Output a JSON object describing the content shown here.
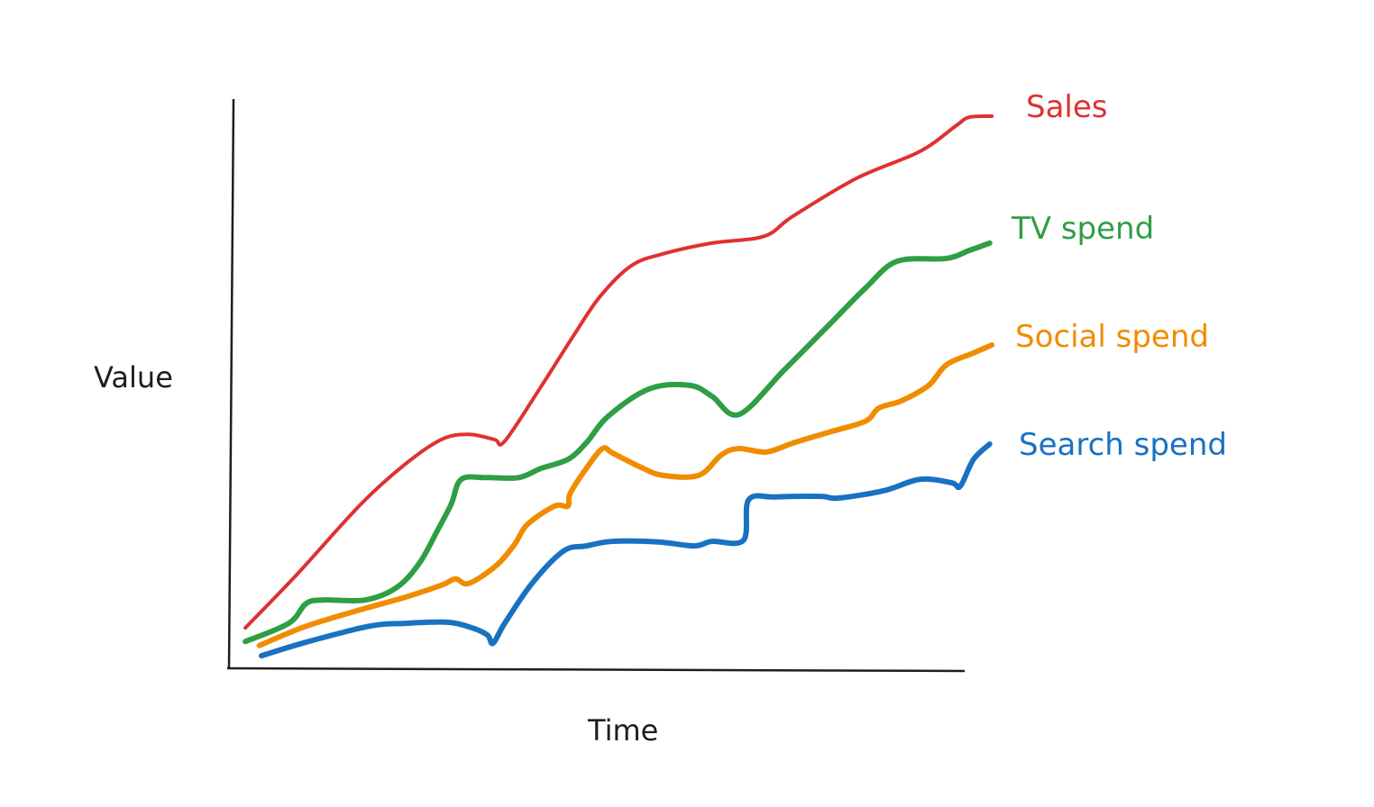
{
  "chart_data": {
    "type": "line",
    "title": "",
    "xlabel": "Time",
    "ylabel": "Value",
    "xlim": [
      0,
      100
    ],
    "ylim": [
      0,
      100
    ],
    "grid": false,
    "legend": "right (labels at line ends)",
    "series": [
      {
        "name": "Sales",
        "color": "#e03131",
        "points": [
          [
            2.1,
            7.1
          ],
          [
            9.2,
            16.6
          ],
          [
            17.8,
            28.8
          ],
          [
            23.9,
            35.9
          ],
          [
            28.8,
            40.2
          ],
          [
            32.5,
            41.1
          ],
          [
            36.0,
            40.2
          ],
          [
            37.4,
            39.9
          ],
          [
            42.3,
            49.4
          ],
          [
            46.6,
            58.1
          ],
          [
            50.3,
            65.2
          ],
          [
            54.6,
            70.7
          ],
          [
            58.9,
            72.8
          ],
          [
            65.6,
            74.7
          ],
          [
            72.7,
            75.9
          ],
          [
            76.6,
            79.4
          ],
          [
            85.3,
            86.1
          ],
          [
            93.9,
            90.8
          ],
          [
            98.8,
            95.3
          ],
          [
            100.6,
            96.8
          ],
          [
            103.7,
            97.0
          ]
        ]
      },
      {
        "name": "TV spend",
        "color": "#2f9e44",
        "points": [
          [
            2.1,
            4.7
          ],
          [
            8.0,
            7.9
          ],
          [
            10.4,
            11.4
          ],
          [
            12.9,
            12.0
          ],
          [
            18.4,
            12.0
          ],
          [
            22.7,
            14.2
          ],
          [
            25.8,
            18.5
          ],
          [
            28.2,
            24.1
          ],
          [
            30.1,
            28.8
          ],
          [
            31.5,
            33.2
          ],
          [
            35.0,
            33.5
          ],
          [
            39.3,
            33.5
          ],
          [
            42.3,
            35.1
          ],
          [
            46.0,
            36.7
          ],
          [
            48.5,
            39.6
          ],
          [
            51.5,
            44.3
          ],
          [
            57.1,
            49.1
          ],
          [
            62.6,
            49.7
          ],
          [
            65.6,
            47.8
          ],
          [
            69.3,
            44.6
          ],
          [
            75.5,
            52.5
          ],
          [
            81.6,
            60.4
          ],
          [
            86.5,
            66.8
          ],
          [
            90.8,
            71.5
          ],
          [
            97.5,
            72.0
          ],
          [
            100.6,
            73.4
          ],
          [
            103.4,
            74.7
          ]
        ]
      },
      {
        "name": "Social spend",
        "color": "#f08c00",
        "points": [
          [
            4.0,
            4.0
          ],
          [
            10.4,
            7.4
          ],
          [
            17.8,
            10.3
          ],
          [
            23.9,
            12.5
          ],
          [
            28.8,
            14.6
          ],
          [
            30.7,
            15.7
          ],
          [
            32.5,
            14.9
          ],
          [
            36.2,
            18.0
          ],
          [
            38.7,
            21.7
          ],
          [
            40.5,
            25.3
          ],
          [
            44.2,
            28.5
          ],
          [
            46.0,
            28.5
          ],
          [
            46.3,
            30.7
          ],
          [
            48.5,
            35.1
          ],
          [
            50.7,
            38.6
          ],
          [
            52.1,
            37.8
          ],
          [
            55.8,
            35.4
          ],
          [
            58.9,
            33.9
          ],
          [
            63.8,
            33.9
          ],
          [
            66.9,
            37.5
          ],
          [
            69.3,
            38.6
          ],
          [
            73.0,
            38.0
          ],
          [
            76.7,
            39.6
          ],
          [
            81.6,
            41.5
          ],
          [
            86.5,
            43.4
          ],
          [
            88.3,
            45.7
          ],
          [
            91.4,
            47.0
          ],
          [
            95.1,
            49.7
          ],
          [
            97.5,
            53.3
          ],
          [
            101.2,
            55.4
          ],
          [
            103.7,
            56.8
          ]
        ]
      },
      {
        "name": "Search spend",
        "color": "#1971c2",
        "points": [
          [
            4.3,
            2.2
          ],
          [
            10.4,
            4.6
          ],
          [
            19.0,
            7.4
          ],
          [
            23.9,
            7.9
          ],
          [
            29.4,
            8.1
          ],
          [
            32.5,
            7.3
          ],
          [
            35.0,
            5.9
          ],
          [
            35.8,
            4.4
          ],
          [
            37.4,
            7.9
          ],
          [
            41.1,
            14.9
          ],
          [
            45.4,
            20.6
          ],
          [
            48.5,
            21.5
          ],
          [
            52.1,
            22.3
          ],
          [
            58.3,
            22.2
          ],
          [
            63.2,
            21.5
          ],
          [
            65.6,
            22.3
          ],
          [
            69.9,
            22.5
          ],
          [
            70.6,
            29.6
          ],
          [
            74.2,
            30.1
          ],
          [
            80.4,
            30.2
          ],
          [
            82.8,
            29.9
          ],
          [
            89.0,
            31.2
          ],
          [
            93.9,
            33.2
          ],
          [
            98.2,
            32.6
          ],
          [
            99.4,
            32.0
          ],
          [
            101.2,
            36.7
          ],
          [
            103.4,
            39.4
          ]
        ]
      }
    ]
  }
}
